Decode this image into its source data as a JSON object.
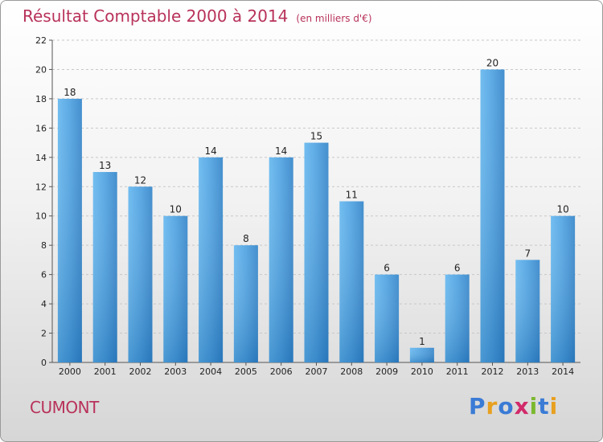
{
  "title": "Résultat Comptable 2000 à 2014",
  "subtitle": "(en milliers d'€)",
  "commune": "CUMONT",
  "logo": {
    "text": "Proxiti",
    "letters": [
      "P",
      "r",
      "o",
      "x",
      "i",
      "t",
      "i"
    ],
    "colors": [
      "#3a7bd5",
      "#e8a020",
      "#3a7bd5",
      "#d12a6a",
      "#7cb82f",
      "#3a7bd5",
      "#e8a020"
    ]
  },
  "colors": {
    "accent": "#b8325a",
    "bar_light": "#5eb3ee",
    "bar_dark": "#2a78c0"
  },
  "chart_data": {
    "type": "bar",
    "title": "Résultat Comptable 2000 à 2014",
    "subtitle": "(en milliers d'€)",
    "categories": [
      "2000",
      "2001",
      "2002",
      "2003",
      "2004",
      "2005",
      "2006",
      "2007",
      "2008",
      "2009",
      "2010",
      "2011",
      "2012",
      "2013",
      "2014"
    ],
    "values": [
      18,
      13,
      12,
      10,
      14,
      8,
      14,
      15,
      11,
      6,
      1,
      6,
      20,
      7,
      10
    ],
    "ylim": [
      0,
      22
    ],
    "yticks": [
      0,
      2,
      4,
      6,
      8,
      10,
      12,
      14,
      16,
      18,
      20,
      22
    ],
    "xlabel": "",
    "ylabel": "",
    "grid": "horizontal dashed"
  }
}
